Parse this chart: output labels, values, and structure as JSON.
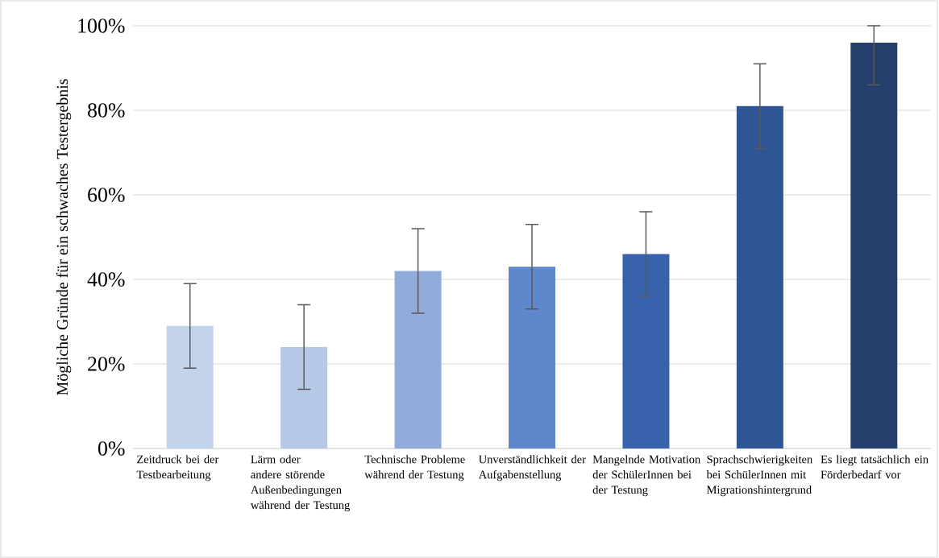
{
  "chart_data": {
    "type": "bar",
    "ylabel": "Mögliche Gründe für ein schwaches Testergebnis",
    "categories": [
      "Zeitdruck bei der Testbearbeitung",
      "Lärm oder andere störende Außenbedingungen während der Testung",
      "Technische Probleme während der Testung",
      "Unverständlichkeit der Aufgabenstellung",
      "Mangelnde Motivation der SchülerInnen bei der Testung",
      "Sprachschwierigkeiten bei SchülerInnen mit Migrationshintergrund",
      "Es liegt tatsächlich ein Förderbedarf vor"
    ],
    "values": [
      29,
      24,
      42,
      43,
      46,
      81,
      96
    ],
    "errors": [
      10,
      10,
      10,
      10,
      10,
      10,
      [
        86,
        100
      ]
    ],
    "colors": [
      "#c3d3ec",
      "#b7c8e7",
      "#91acdb",
      "#5e87cc",
      "#3862ab",
      "#2f5594",
      "#26406d"
    ],
    "ylim": [
      0,
      100
    ],
    "yticks": [
      {
        "value": 0,
        "label": "0%"
      },
      {
        "value": 20,
        "label": "20%"
      },
      {
        "value": 40,
        "label": "40%"
      },
      {
        "value": 60,
        "label": "60%"
      },
      {
        "value": 80,
        "label": "80%"
      },
      {
        "value": 100,
        "label": "100%"
      }
    ],
    "grid": "y"
  }
}
